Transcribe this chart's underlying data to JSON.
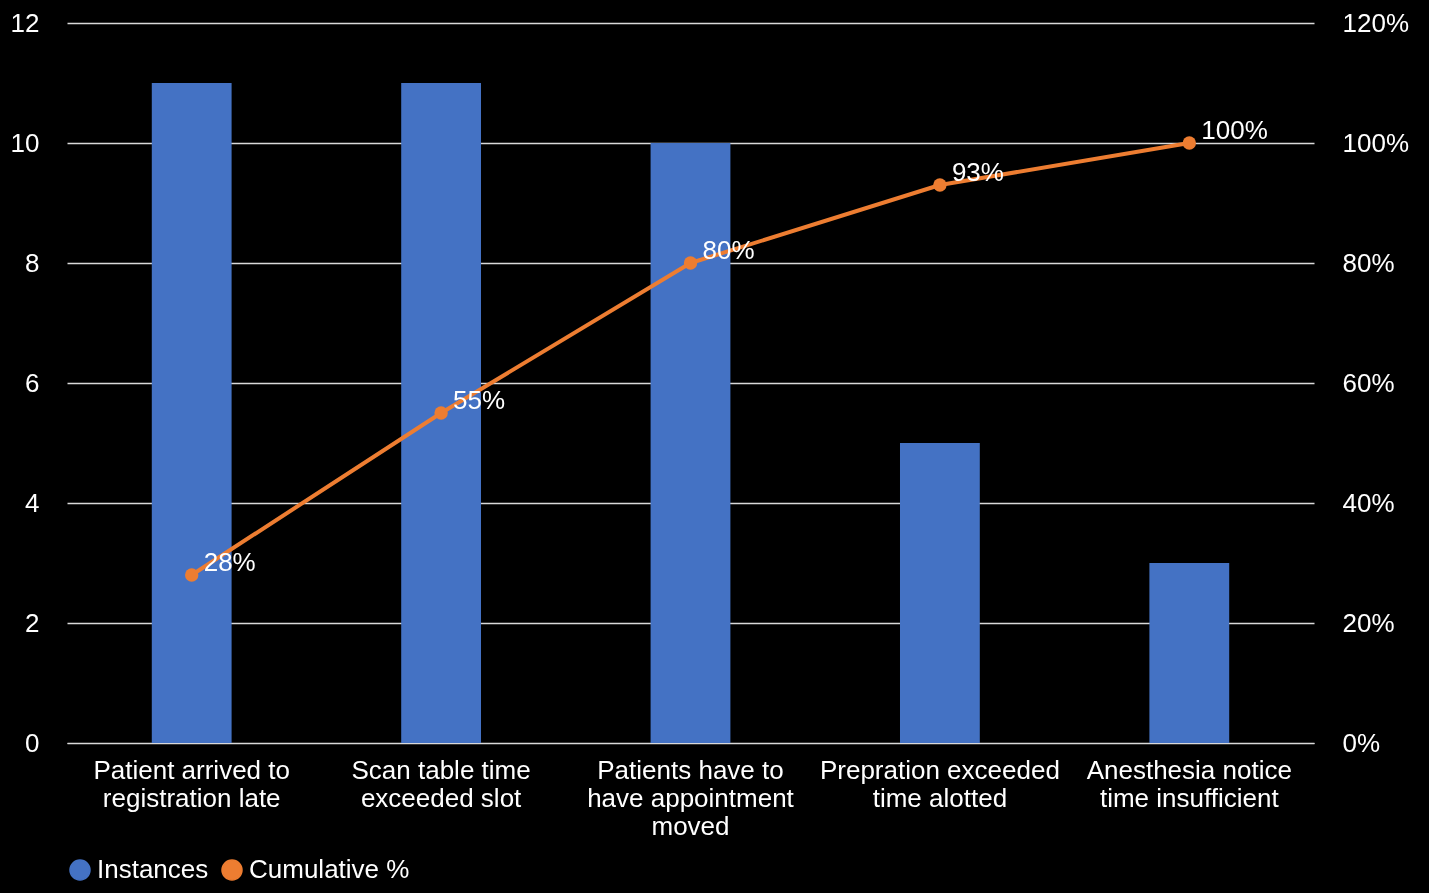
{
  "chart_data": {
    "type": "bar",
    "categories": [
      "Patient arrived to registration late",
      "Scan table time exceeded slot",
      "Patients have to have appointment moved",
      "Prepration exceeded time alotted",
      "Anesthesia notice time insufficient"
    ],
    "series": [
      {
        "name": "Instances",
        "color": "#4472c4",
        "values": [
          11,
          11,
          10,
          5,
          3
        ]
      },
      {
        "name": "Cumulative %",
        "type": "line",
        "axis": "y2",
        "color": "#ed7d31",
        "marker": "circle",
        "values": [
          28,
          55,
          80,
          93,
          100
        ],
        "value_labels": [
          "28%",
          "55%",
          "80%",
          "93%",
          "100%"
        ]
      }
    ],
    "ylim": [
      0,
      12
    ],
    "yticks": [
      0,
      2,
      4,
      6,
      8,
      10,
      12
    ],
    "y2lim": [
      0,
      120
    ],
    "y2ticks": [
      {
        "value": 0,
        "label": "0%"
      },
      {
        "value": 20,
        "label": "20%"
      },
      {
        "value": 40,
        "label": "40%"
      },
      {
        "value": 60,
        "label": "60%"
      },
      {
        "value": 80,
        "label": "80%"
      },
      {
        "value": 100,
        "label": "100%"
      },
      {
        "value": 120,
        "label": "120%"
      }
    ],
    "grid": "y",
    "legend": "bottom"
  }
}
